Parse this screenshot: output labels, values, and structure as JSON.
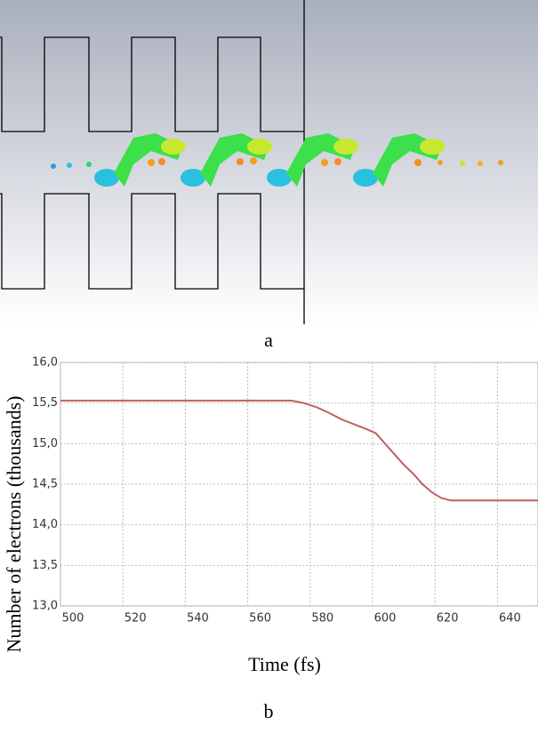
{
  "figure": {
    "panel_a_label": "a",
    "panel_b_label": "b"
  },
  "chart_data": {
    "type": "line",
    "x_label": "Time (fs)",
    "y_label": "Number of electrons (thousands)",
    "x": [
      500,
      520,
      540,
      560,
      574,
      578,
      582,
      586,
      590,
      594,
      598,
      601,
      604,
      607,
      610,
      613,
      616,
      619,
      622,
      625,
      630,
      640,
      653
    ],
    "values": [
      15.53,
      15.53,
      15.53,
      15.53,
      15.53,
      15.5,
      15.45,
      15.38,
      15.3,
      15.24,
      15.18,
      15.13,
      15.0,
      14.87,
      14.74,
      14.63,
      14.5,
      14.4,
      14.33,
      14.3,
      14.3,
      14.3,
      14.3
    ],
    "color": "#c0605a",
    "xlim": [
      500,
      653
    ],
    "xticks": [
      500,
      520,
      540,
      560,
      580,
      600,
      620,
      640
    ],
    "ylim": [
      13,
      16
    ],
    "yticks": [
      {
        "value": 13,
        "label": "13,0"
      },
      {
        "value": 13.5,
        "label": "13,5"
      },
      {
        "value": 14,
        "label": "14,0"
      },
      {
        "value": 14.5,
        "label": "14,5"
      },
      {
        "value": 15,
        "label": "15,0"
      },
      {
        "value": 15.5,
        "label": "15,5"
      },
      {
        "value": 16,
        "label": "16,0"
      }
    ],
    "grid": true
  }
}
